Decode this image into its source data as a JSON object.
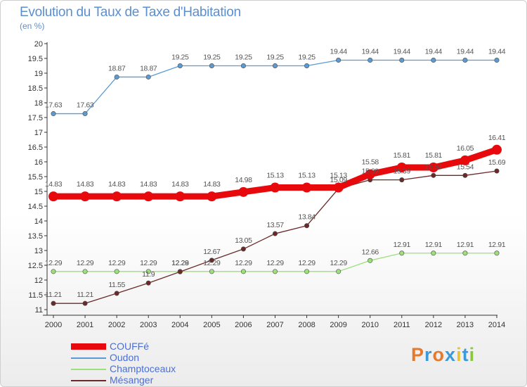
{
  "title": "Evolution du Taux de Taxe d'Habitation",
  "unit": "(en %)",
  "logo": {
    "text": "Proxiti",
    "colors": [
      "#e8782a",
      "#3b9bd8",
      "#e8782a",
      "#3b9bd8",
      "#e8c62a",
      "#3b9bd8",
      "#8cc63f"
    ]
  },
  "chart_data": {
    "type": "line",
    "title": "Evolution du Taux de Taxe d'Habitation",
    "ylabel": "(en %)",
    "xlabel": "",
    "ylim": [
      11,
      20
    ],
    "grid": false,
    "legend_position": "bottom-left",
    "x": [
      "2000",
      "2001",
      "2002",
      "2003",
      "2004",
      "2005",
      "2006",
      "2007",
      "2008",
      "2009",
      "2010",
      "2011",
      "2012",
      "2013",
      "2014"
    ],
    "yticks": [
      "11",
      "11.5",
      "12",
      "12.5",
      "13",
      "13.5",
      "14",
      "14.5",
      "15",
      "15.5",
      "16",
      "16.5",
      "17",
      "17.5",
      "18",
      "18.5",
      "19",
      "19.5",
      "20"
    ],
    "series": [
      {
        "name": "COUFFé",
        "color": "#e8090d",
        "emphasis": true,
        "values": [
          14.83,
          14.83,
          14.83,
          14.83,
          14.83,
          14.83,
          14.98,
          15.13,
          15.13,
          15.13,
          15.58,
          15.81,
          15.81,
          16.05,
          16.41
        ]
      },
      {
        "name": "Oudon",
        "color": "#5a9bd5",
        "emphasis": false,
        "values": [
          17.63,
          17.63,
          18.87,
          18.87,
          19.25,
          19.25,
          19.25,
          19.25,
          19.25,
          19.44,
          19.44,
          19.44,
          19.44,
          19.44,
          19.44
        ]
      },
      {
        "name": "Champtoceaux",
        "color": "#9be07a",
        "emphasis": false,
        "values": [
          12.29,
          12.29,
          12.29,
          12.29,
          12.29,
          12.29,
          12.29,
          12.29,
          12.29,
          12.29,
          12.66,
          12.91,
          12.91,
          12.91,
          12.91
        ]
      },
      {
        "name": "Mésanger",
        "color": "#6b2a2a",
        "emphasis": false,
        "values": [
          11.21,
          11.21,
          11.55,
          11.9,
          12.28,
          12.67,
          13.05,
          13.57,
          13.84,
          15.09,
          15.39,
          15.39,
          15.54,
          15.54,
          15.69
        ]
      }
    ],
    "data_labels": [
      [
        "14.83",
        "14.83",
        "14.83",
        "14.83",
        "14.83",
        "14.83",
        "14.98",
        "15.13",
        "15.13",
        "15.13",
        "15.58",
        "15.81",
        "15.81",
        "16.05",
        "16.41"
      ],
      [
        "17.63",
        "17.63",
        "18.87",
        "18.87",
        "19.25",
        "19.25",
        "19.25",
        "19.25",
        "19.25",
        "19.44",
        "19.44",
        "19.44",
        "19.44",
        "19.44",
        "19.44"
      ],
      [
        "12.29",
        "12.29",
        "12.29",
        "12.29",
        "12.29",
        "12.29",
        "12.29",
        "12.29",
        "12.29",
        "12.29",
        "12.66",
        "12.91",
        "12.91",
        "12.91",
        "12.91"
      ],
      [
        "11.21",
        "11.21",
        "11.55",
        "11.9",
        "12.28",
        "12.67",
        "13.05",
        "13.57",
        "13.84",
        "15.09",
        "15.39",
        "15.39",
        "15.54",
        "15.54",
        "15.69"
      ]
    ]
  }
}
